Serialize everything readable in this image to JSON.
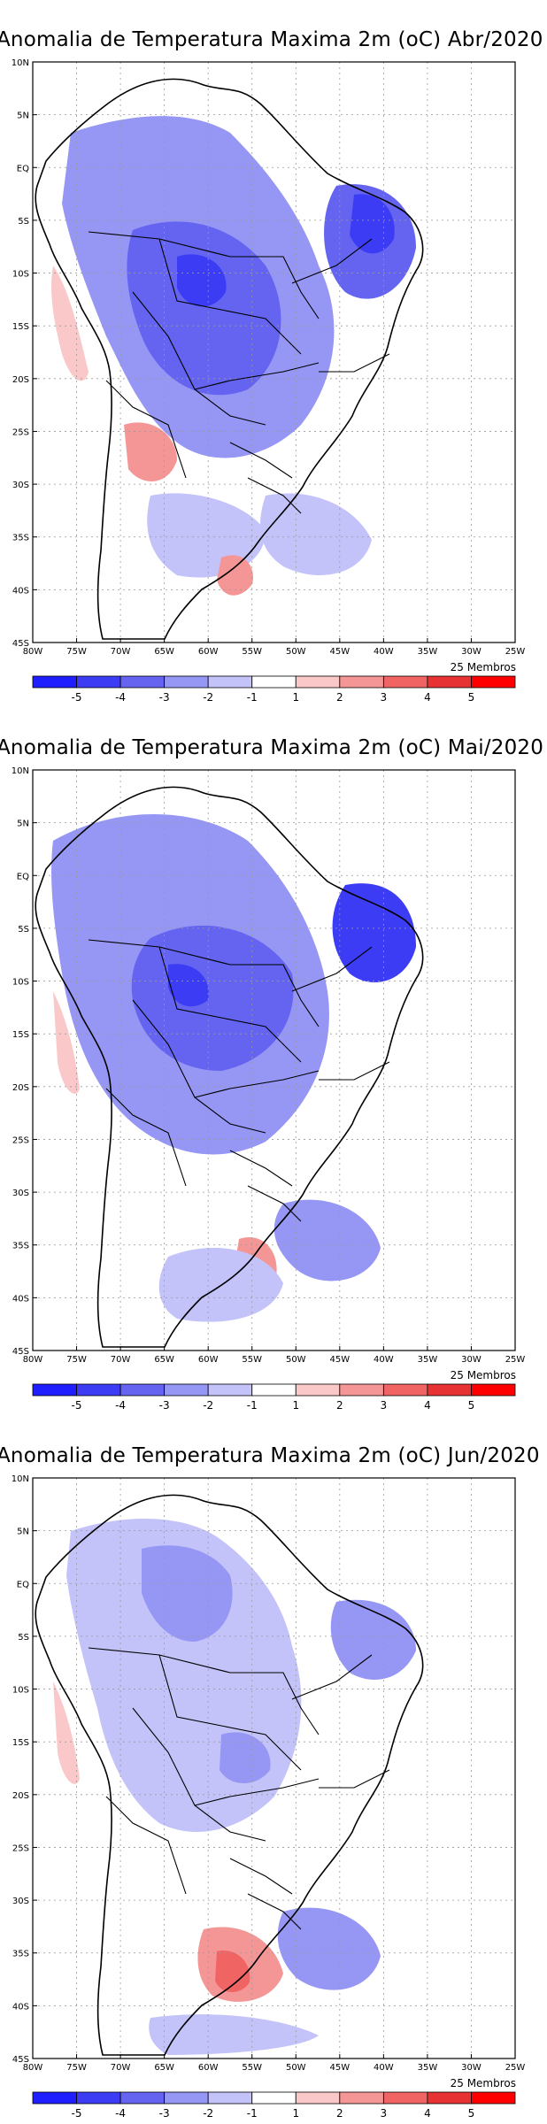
{
  "panels": [
    {
      "title": "Anomalia de Temperatura Maxima 2m (oC) Abr/2020",
      "members": "25 Membros"
    },
    {
      "title": "Anomalia de Temperatura Maxima 2m (oC) Mai/2020",
      "members": "25 Membros"
    },
    {
      "title": "Anomalia de Temperatura Maxima 2m (oC) Jun/2020",
      "members": "25 Membros"
    }
  ],
  "lat_labels": [
    "10N",
    "5N",
    "EQ",
    "5S",
    "10S",
    "15S",
    "20S",
    "25S",
    "30S",
    "35S",
    "40S",
    "45S"
  ],
  "lon_labels": [
    "80W",
    "75W",
    "70W",
    "65W",
    "60W",
    "55W",
    "50W",
    "45W",
    "40W",
    "35W",
    "30W",
    "25W"
  ],
  "legend": {
    "labels": [
      "-5",
      "-4",
      "-3",
      "-2",
      "-1",
      "1",
      "2",
      "3",
      "4",
      "5"
    ],
    "colors": [
      "#1e1eff",
      "#3c3cf5",
      "#6464f0",
      "#9696f5",
      "#c3c3fa",
      "#ffffff",
      "#fac8c8",
      "#f59696",
      "#f06464",
      "#e63232",
      "#ff0000"
    ]
  }
}
